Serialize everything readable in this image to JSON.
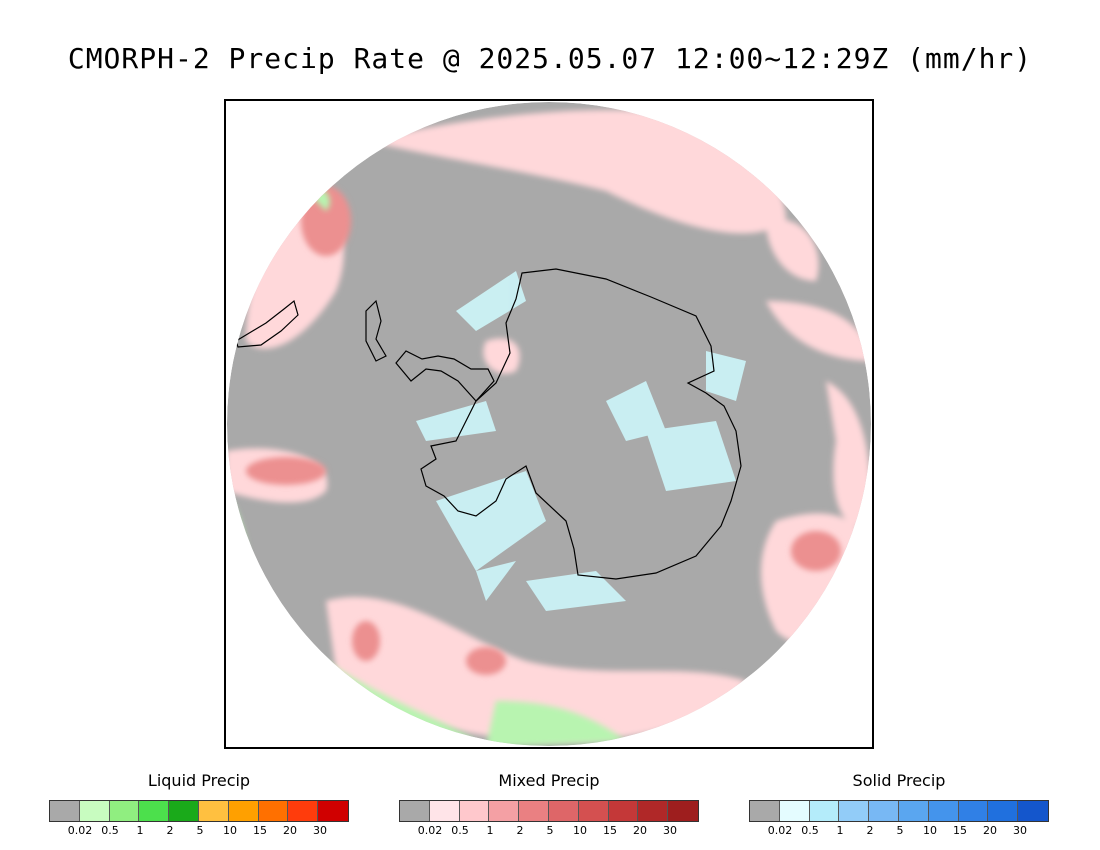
{
  "title": "CMORPH-2 Precip Rate @ 2025.05.07 12:00~12:29Z (mm/hr)",
  "map": {
    "projection": "south-polar-stereographic",
    "colors": {
      "background_no_precip": "#a9a9a9",
      "ocean_outside": "#ffffff",
      "coastline": "#000000"
    }
  },
  "legends": [
    {
      "id": "liquid",
      "title": "Liquid Precip",
      "colors": [
        "#a9a9a9",
        "#c8fcc0",
        "#90ee80",
        "#4ce04c",
        "#1aaa1a",
        "#ffc040",
        "#ffa000",
        "#ff7000",
        "#ff3c0c",
        "#d00000"
      ],
      "ticks": [
        "0.02",
        "0.5",
        "1",
        "2",
        "5",
        "10",
        "15",
        "20",
        "30"
      ]
    },
    {
      "id": "mixed",
      "title": "Mixed Precip",
      "colors": [
        "#a9a9a9",
        "#ffe4e8",
        "#ffc8cc",
        "#f4a0a4",
        "#ea8082",
        "#de6668",
        "#d45050",
        "#c43838",
        "#b02828",
        "#9e1e1e"
      ],
      "ticks": [
        "0.02",
        "0.5",
        "1",
        "2",
        "5",
        "10",
        "15",
        "20",
        "30"
      ]
    },
    {
      "id": "solid",
      "title": "Solid Precip",
      "colors": [
        "#a9a9a9",
        "#e4fcff",
        "#b4ecfa",
        "#92ccf8",
        "#78b8f4",
        "#5aa6f0",
        "#4494ec",
        "#3080e6",
        "#2070de",
        "#1456cc"
      ],
      "ticks": [
        "0.02",
        "0.5",
        "1",
        "2",
        "5",
        "10",
        "15",
        "20",
        "30"
      ]
    }
  ]
}
